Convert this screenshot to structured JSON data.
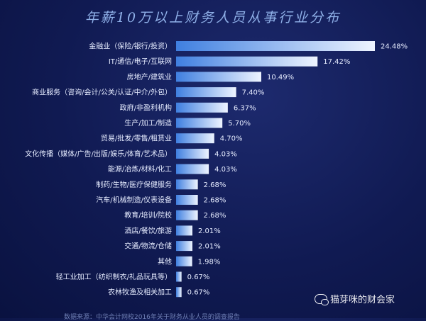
{
  "chart_data": {
    "type": "bar",
    "orientation": "horizontal",
    "title": "年薪10万以上财务人员从事行业分布",
    "categories": [
      "金融业（保险/银行/投资）",
      "IT/通信/电子/互联网",
      "房地产/建筑业",
      "商业服务（咨询/会计/公关/认证/中介/外包）",
      "政府/非盈利机构",
      "生产/加工/制造",
      "贸易/批发/零售/租赁业",
      "文化传播（媒体/广告/出版/娱乐/体育/艺术品）",
      "能源/冶炼/材料/化工",
      "制药/生物/医疗保健服务",
      "汽车/机械制造/仪表设备",
      "教育/培训/院校",
      "酒店/餐饮/旅游",
      "交通/物流/仓储",
      "其他",
      "轻工业加工（纺织制衣/礼品玩具等）",
      "农林牧渔及相关加工"
    ],
    "values": [
      24.48,
      17.42,
      10.49,
      7.4,
      6.37,
      5.7,
      4.7,
      4.03,
      4.03,
      2.68,
      2.68,
      2.68,
      2.01,
      2.01,
      1.98,
      0.67,
      0.67
    ],
    "value_labels": [
      "24.48%",
      "17.42%",
      "10.49%",
      "7.40%",
      "6.37%",
      "5.70%",
      "4.70%",
      "4.03%",
      "4.03%",
      "2.68%",
      "2.68%",
      "2.68%",
      "2.01%",
      "2.01%",
      "1.98%",
      "0.67%",
      "0.67%"
    ],
    "xlim": [
      0,
      24.48
    ],
    "grid": false,
    "bar_color_start": "#3f7fe0",
    "bar_color_end": "#eef4ff"
  },
  "footer": "数据来源：中华会计网校2016年关于财务从业人员的调查报告",
  "watermark": "猫芽咪的财会家"
}
